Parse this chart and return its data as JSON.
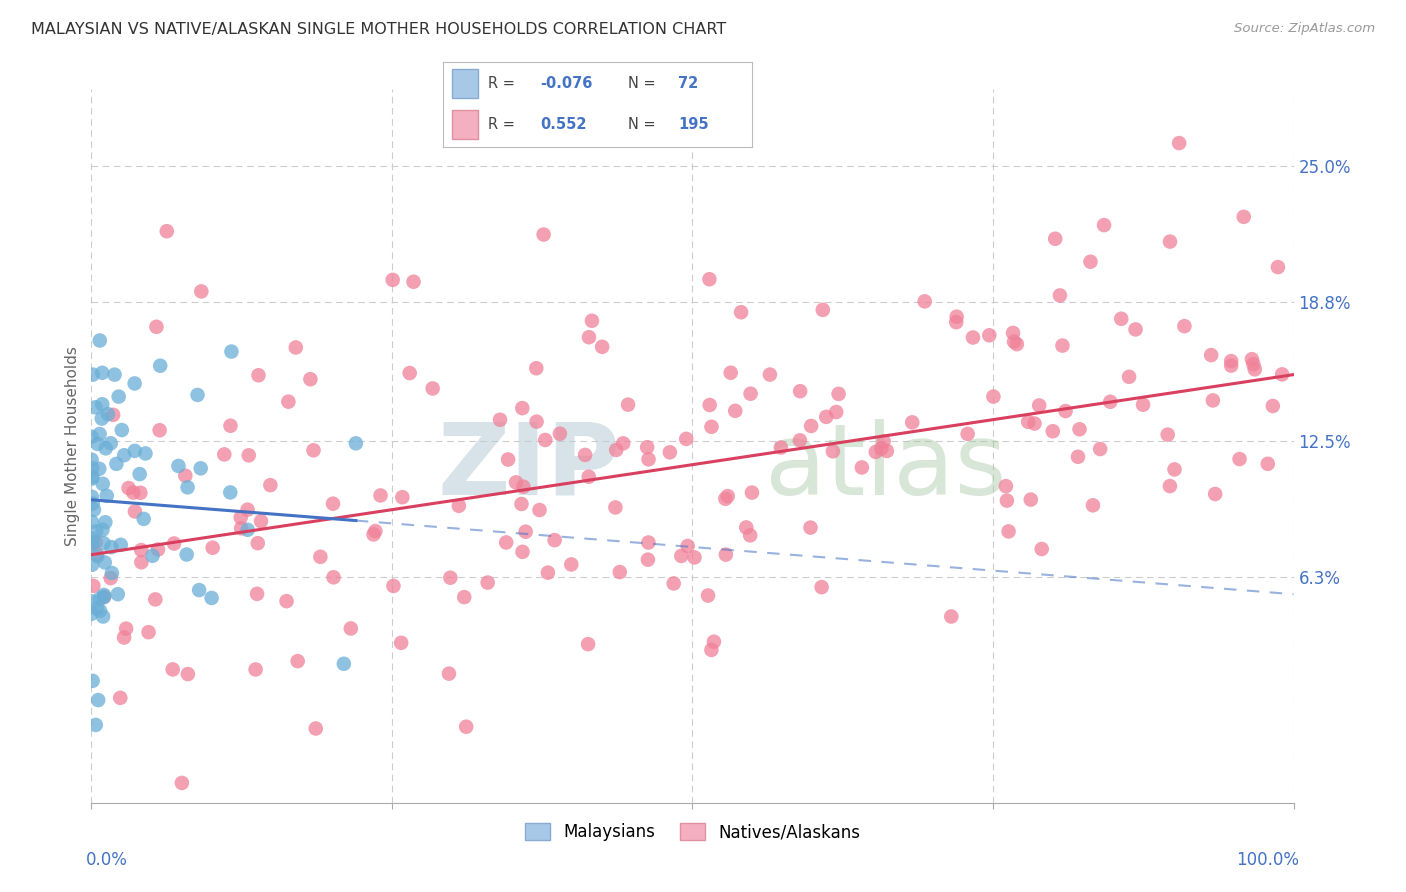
{
  "title": "MALAYSIAN VS NATIVE/ALASKAN SINGLE MOTHER HOUSEHOLDS CORRELATION CHART",
  "source": "Source: ZipAtlas.com",
  "ylabel": "Single Mother Households",
  "ytick_labels": [
    "6.3%",
    "12.5%",
    "18.8%",
    "25.0%"
  ],
  "ytick_values": [
    0.063,
    0.125,
    0.188,
    0.25
  ],
  "xlim": [
    0.0,
    1.0
  ],
  "ylim": [
    -0.04,
    0.285
  ],
  "watermark_zip": "ZIP",
  "watermark_atlas": "atlas",
  "malaysian_color": "#6aaed6",
  "native_color": "#f08098",
  "malaysian_trend_color": "#4472c4",
  "native_trend_color": "#d94060",
  "background_color": "#ffffff",
  "grid_color": "#cccccc",
  "title_color": "#333333",
  "axis_label_color": "#4472c4",
  "r_malaysian": -0.076,
  "n_malaysian": 72,
  "r_native": 0.552,
  "n_native": 195,
  "mal_trend": [
    0.0,
    0.098,
    1.0,
    0.055
  ],
  "nat_trend_solid": [
    0.0,
    0.073,
    1.0,
    0.155
  ],
  "legend_r1": "R = -0.076",
  "legend_n1": "N =  72",
  "legend_r2": "R =  0.552",
  "legend_n2": "N = 195",
  "legend_color1": "#a8c8e8",
  "legend_color2": "#f4b0c0",
  "bottom_legend_labels": [
    "Malaysians",
    "Natives/Alaskans"
  ]
}
